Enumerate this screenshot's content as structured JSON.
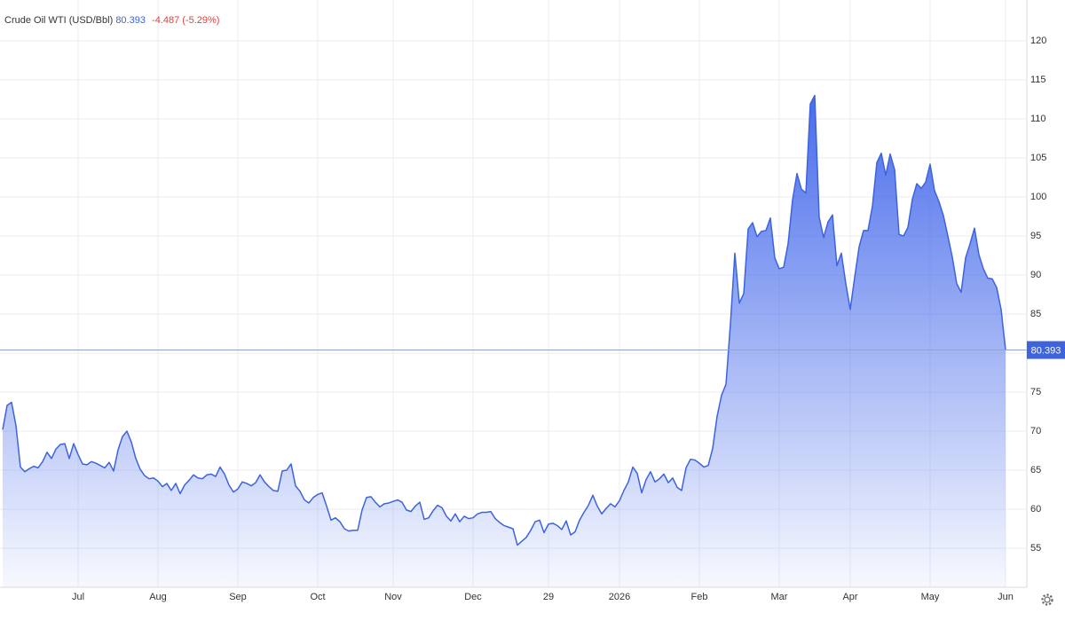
{
  "chart_data": {
    "type": "area",
    "title": "Crude Oil WTI (USD/Bbl)",
    "change": "-4.487 (-5.29%)",
    "categories": [
      null,
      null,
      null,
      null,
      null,
      null,
      null,
      null,
      null,
      null,
      null,
      null,
      null,
      null,
      null,
      null,
      null,
      "Jul",
      null,
      null,
      null,
      null,
      null,
      null,
      null,
      null,
      null,
      null,
      null,
      null,
      null,
      null,
      null,
      null,
      null,
      "Aug",
      null,
      null,
      null,
      null,
      null,
      null,
      null,
      null,
      null,
      null,
      null,
      null,
      null,
      null,
      null,
      null,
      null,
      "Sep",
      null,
      null,
      null,
      null,
      null,
      null,
      null,
      null,
      null,
      null,
      null,
      null,
      null,
      null,
      null,
      null,
      null,
      "Oct",
      null,
      null,
      null,
      null,
      null,
      null,
      null,
      null,
      null,
      null,
      null,
      null,
      null,
      null,
      null,
      null,
      "Nov",
      null,
      null,
      null,
      null,
      null,
      null,
      null,
      null,
      null,
      null,
      null,
      null,
      null,
      null,
      null,
      null,
      null,
      "Dec",
      null,
      null,
      null,
      null,
      null,
      null,
      null,
      null,
      null,
      null,
      null,
      null,
      null,
      null,
      null,
      null,
      "29",
      null,
      null,
      null,
      null,
      null,
      null,
      null,
      null,
      null,
      null,
      null,
      null,
      null,
      null,
      null,
      "2026",
      null,
      null,
      null,
      null,
      null,
      null,
      null,
      null,
      null,
      null,
      null,
      null,
      null,
      null,
      null,
      null,
      null,
      "Feb",
      null,
      null,
      null,
      null,
      null,
      null,
      null,
      null,
      null,
      null,
      null,
      null,
      null,
      null,
      null,
      null,
      null,
      "Mar",
      null,
      null,
      null,
      null,
      null,
      null,
      null,
      null,
      null,
      null,
      null,
      null,
      null,
      null,
      null,
      "Apr",
      null,
      null,
      null,
      null,
      null,
      null,
      null,
      null,
      null,
      null,
      null,
      null,
      null,
      null,
      null,
      null,
      null,
      "May",
      null,
      null,
      null,
      null,
      null,
      null,
      null,
      null,
      null,
      null,
      null,
      null,
      null,
      null,
      null,
      null,
      "Jun"
    ],
    "series": [
      {
        "name": "Crude Oil WTI (USD/Bbl)",
        "color": "#3d63dd",
        "values": [
          70.2,
          73.3,
          73.7,
          70.7,
          65.4,
          64.8,
          65.2,
          65.5,
          65.3,
          66.1,
          67.3,
          66.5,
          67.7,
          68.3,
          68.4,
          66.5,
          68.4,
          67.0,
          65.8,
          65.7,
          66.1,
          65.9,
          65.6,
          65.3,
          66.0,
          64.9,
          67.6,
          69.3,
          70.0,
          68.6,
          66.5,
          65.1,
          64.3,
          63.9,
          64.0,
          63.6,
          62.9,
          63.3,
          62.4,
          63.3,
          62.0,
          63.1,
          63.7,
          64.4,
          64.0,
          63.9,
          64.4,
          64.5,
          64.2,
          65.4,
          64.5,
          63.1,
          62.2,
          62.6,
          63.5,
          63.3,
          63.0,
          63.4,
          64.4,
          63.5,
          62.9,
          62.4,
          62.3,
          64.9,
          65.0,
          65.8,
          63.0,
          62.3,
          61.2,
          60.8,
          61.5,
          61.9,
          62.1,
          60.4,
          58.6,
          58.9,
          58.4,
          57.5,
          57.2,
          57.3,
          57.3,
          59.9,
          61.5,
          61.6,
          60.9,
          60.3,
          60.7,
          60.8,
          61.0,
          61.2,
          60.9,
          59.9,
          59.7,
          60.4,
          60.9,
          58.7,
          58.9,
          59.8,
          60.5,
          60.2,
          59.1,
          58.5,
          59.4,
          58.4,
          59.1,
          58.8,
          58.9,
          59.4,
          59.6,
          59.6,
          59.7,
          58.8,
          58.3,
          57.9,
          57.7,
          57.5,
          55.4,
          55.9,
          56.4,
          57.3,
          58.4,
          58.6,
          57.0,
          58.1,
          58.2,
          57.9,
          57.4,
          58.5,
          56.7,
          57.1,
          58.6,
          59.6,
          60.5,
          61.8,
          60.4,
          59.4,
          60.1,
          60.7,
          60.3,
          61.1,
          62.4,
          63.5,
          65.4,
          64.6,
          62.1,
          63.8,
          64.8,
          63.5,
          63.9,
          64.5,
          63.4,
          64.0,
          62.8,
          62.4,
          65.3,
          66.4,
          66.3,
          65.9,
          65.4,
          65.6,
          67.8,
          71.9,
          74.6,
          76.0,
          83.7,
          92.8,
          86.4,
          87.6,
          95.9,
          96.7,
          94.9,
          95.6,
          95.7,
          97.3,
          92.2,
          90.8,
          91.0,
          94.0,
          99.6,
          103.0,
          101.0,
          100.5,
          111.9,
          113.0,
          97.4,
          94.8,
          96.8,
          97.7,
          91.2,
          92.8,
          88.9,
          85.6,
          89.7,
          93.6,
          95.7,
          95.7,
          98.8,
          104.4,
          105.6,
          102.8,
          105.5,
          103.5,
          95.2,
          95.0,
          96.1,
          99.7,
          101.7,
          101.1,
          101.9,
          104.2,
          100.8,
          99.4,
          97.6,
          95.0,
          92.3,
          88.9,
          87.8,
          92.2,
          94.0,
          96.0,
          92.6,
          90.8,
          89.6,
          89.5,
          88.4,
          85.6,
          80.393
        ]
      }
    ],
    "ylim": [
      50,
      124
    ],
    "yticks": [
      55,
      60,
      65,
      70,
      75,
      80,
      85,
      90,
      95,
      100,
      105,
      110,
      115,
      120
    ],
    "grid": true
  }
}
